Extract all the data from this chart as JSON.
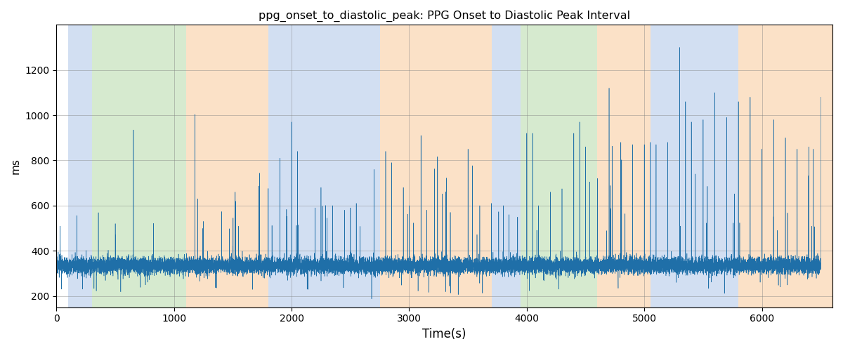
{
  "title": "ppg_onset_to_diastolic_peak: PPG Onset to Diastolic Peak Interval",
  "xlabel": "Time(s)",
  "ylabel": "ms",
  "xlim": [
    0,
    6600
  ],
  "ylim": [
    150,
    1400
  ],
  "yticks": [
    200,
    400,
    600,
    800,
    1000,
    1200
  ],
  "xticks": [
    0,
    1000,
    2000,
    3000,
    4000,
    5000,
    6000
  ],
  "line_color": "#1f6fa8",
  "bg_regions": [
    {
      "start": 100,
      "end": 300,
      "color": "#aec6e8",
      "alpha": 0.55
    },
    {
      "start": 300,
      "end": 1100,
      "color": "#b5d9a8",
      "alpha": 0.55
    },
    {
      "start": 1100,
      "end": 1800,
      "color": "#f9c99a",
      "alpha": 0.55
    },
    {
      "start": 1800,
      "end": 2750,
      "color": "#aec6e8",
      "alpha": 0.55
    },
    {
      "start": 2750,
      "end": 3700,
      "color": "#f9c99a",
      "alpha": 0.55
    },
    {
      "start": 3700,
      "end": 3950,
      "color": "#aec6e8",
      "alpha": 0.55
    },
    {
      "start": 3950,
      "end": 4600,
      "color": "#b5d9a8",
      "alpha": 0.55
    },
    {
      "start": 4600,
      "end": 5050,
      "color": "#f9c99a",
      "alpha": 0.55
    },
    {
      "start": 5050,
      "end": 5800,
      "color": "#aec6e8",
      "alpha": 0.55
    },
    {
      "start": 5800,
      "end": 6600,
      "color": "#f9c99a",
      "alpha": 0.55
    }
  ],
  "seed": 17,
  "n_points": 18000,
  "base_value": 335,
  "noise_std": 18,
  "spike_prob_early": 0.0008,
  "spike_prob_late": 0.004,
  "spike_transition": 1000,
  "spike_min": 150,
  "spike_max": 1300,
  "dip_prob": 0.003,
  "dip_min": 50,
  "dip_max": 120,
  "figsize": [
    12.0,
    5.0
  ],
  "dpi": 100
}
